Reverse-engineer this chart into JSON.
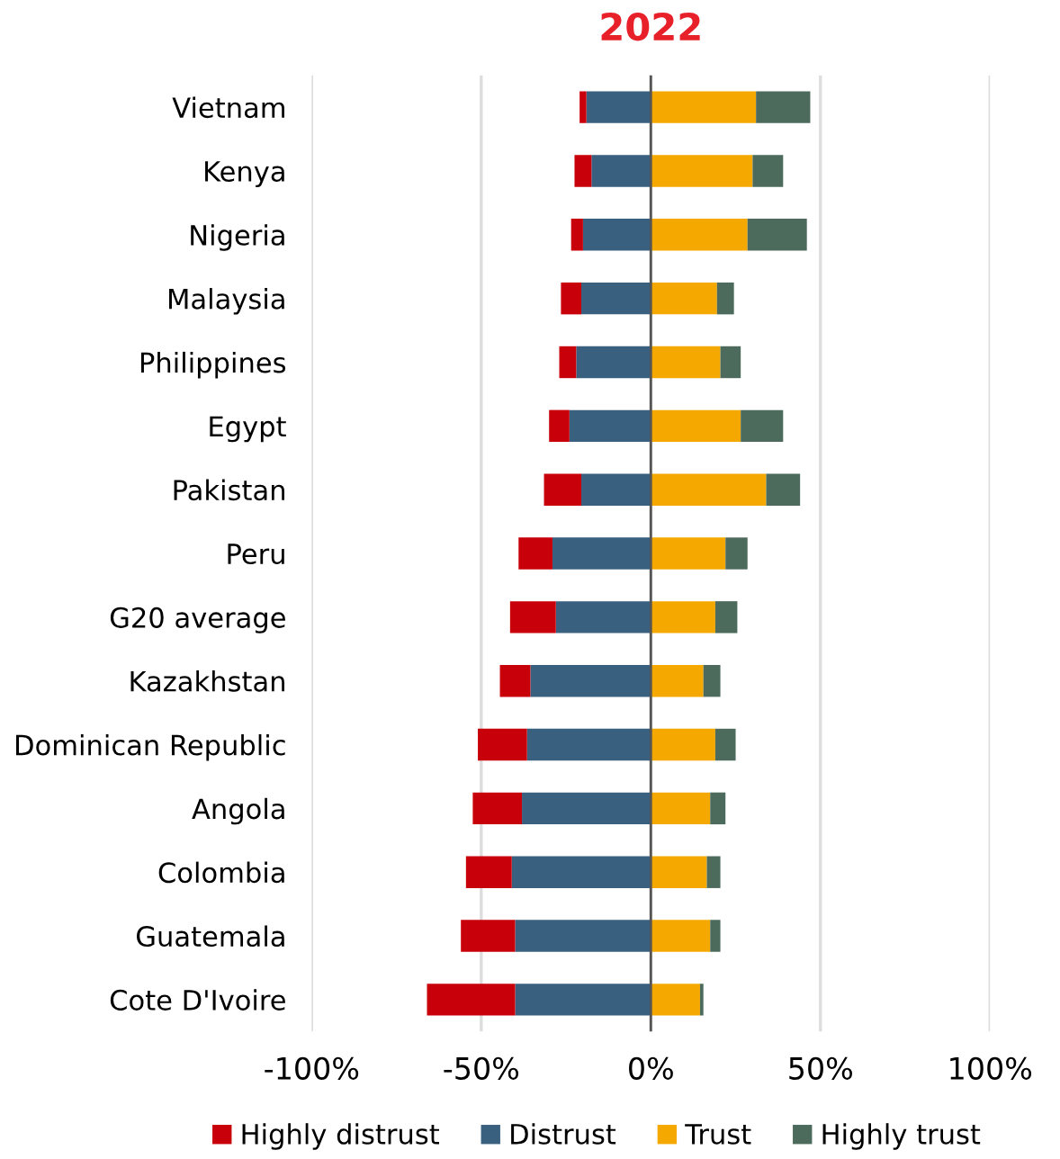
{
  "chart_data": {
    "type": "bar",
    "orientation": "horizontal",
    "stacked": true,
    "title": "2022",
    "categories": [
      "Vietnam",
      "Kenya",
      "Nigeria",
      "Malaysia",
      "Philippines",
      "Egypt",
      "Pakistan",
      "Peru",
      "G20 average",
      "Kazakhstan",
      "Dominican Republic",
      "Angola",
      "Colombia",
      "Guatemala",
      "Cote D'Ivoire"
    ],
    "series": [
      {
        "name": "Distrust",
        "color": "#3a6080",
        "values": [
          -19,
          -17.5,
          -20,
          -20.5,
          -22,
          -24,
          -20.5,
          -29,
          -28,
          -35.5,
          -36.5,
          -38,
          -41,
          -40,
          -40
        ]
      },
      {
        "name": "Highly distrust",
        "color": "#c8000a",
        "values": [
          -2,
          -5,
          -3.5,
          -6,
          -5,
          -6,
          -11,
          -10,
          -13.5,
          -9,
          -14.5,
          -14.5,
          -13.5,
          -16,
          -26
        ]
      },
      {
        "name": "Trust",
        "color": "#f5a800",
        "values": [
          31,
          30,
          28.5,
          19.5,
          20.5,
          26.5,
          34,
          22,
          19,
          15.5,
          19,
          17.5,
          16.5,
          17.5,
          14.5
        ]
      },
      {
        "name": "Highly trust",
        "color": "#4d6b5c",
        "values": [
          16,
          9,
          17.5,
          5,
          6,
          12.5,
          10,
          6.5,
          6.5,
          5,
          6,
          4.5,
          4,
          3,
          1
        ]
      }
    ],
    "xlim": [
      -100,
      100
    ],
    "xticks": [
      {
        "value": -100,
        "label": "-100%"
      },
      {
        "value": -50,
        "label": "-50%"
      },
      {
        "value": 0,
        "label": "0%"
      },
      {
        "value": 50,
        "label": "50%"
      },
      {
        "value": 100,
        "label": "100%"
      }
    ],
    "grid": "x",
    "legend": "bottom"
  }
}
